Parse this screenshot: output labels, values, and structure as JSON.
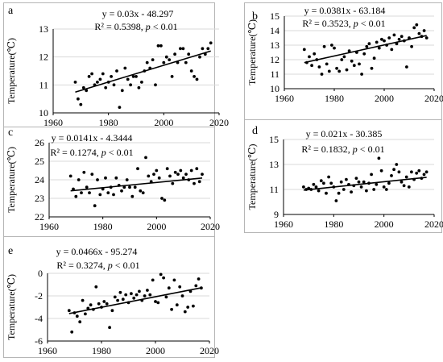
{
  "chart_data": [
    {
      "type": "scatter",
      "panel_letter": "a",
      "ylabel": "Temperature(℃)",
      "equation": "y = 0.03x - 48.297",
      "r2_prefix": "R² = 0.5398, ",
      "p_symbol": "p",
      "p_suffix": " < 0.01",
      "xlim": [
        1960,
        2020
      ],
      "ylim": [
        10,
        13
      ],
      "xticks": [
        1960,
        1980,
        2000,
        2020
      ],
      "yticks": [
        10,
        11,
        12,
        13
      ],
      "trend": {
        "slope": 0.03,
        "intercept": -48.297,
        "x_range": [
          1968,
          2017
        ]
      },
      "points": [
        [
          1968,
          11.1
        ],
        [
          1969,
          10.5
        ],
        [
          1970,
          10.3
        ],
        [
          1971,
          10.9
        ],
        [
          1972,
          10.8
        ],
        [
          1973,
          11.3
        ],
        [
          1974,
          11.4
        ],
        [
          1975,
          11.0
        ],
        [
          1976,
          11.1
        ],
        [
          1977,
          11.2
        ],
        [
          1978,
          11.4
        ],
        [
          1979,
          10.9
        ],
        [
          1980,
          11.1
        ],
        [
          1981,
          11.3
        ],
        [
          1982,
          11.0
        ],
        [
          1983,
          11.5
        ],
        [
          1984,
          10.2
        ],
        [
          1985,
          10.8
        ],
        [
          1986,
          11.6
        ],
        [
          1987,
          11.2
        ],
        [
          1988,
          11.0
        ],
        [
          1989,
          11.3
        ],
        [
          1990,
          11.3
        ],
        [
          1991,
          10.9
        ],
        [
          1992,
          11.1
        ],
        [
          1993,
          11.5
        ],
        [
          1994,
          11.8
        ],
        [
          1995,
          11.6
        ],
        [
          1996,
          11.9
        ],
        [
          1997,
          11.0
        ],
        [
          1998,
          12.4
        ],
        [
          1999,
          12.4
        ],
        [
          2000,
          11.8
        ],
        [
          2001,
          12.0
        ],
        [
          2002,
          11.9
        ],
        [
          2003,
          11.3
        ],
        [
          2004,
          12.1
        ],
        [
          2005,
          11.8
        ],
        [
          2006,
          12.3
        ],
        [
          2007,
          12.3
        ],
        [
          2008,
          11.8
        ],
        [
          2009,
          12.1
        ],
        [
          2010,
          11.5
        ],
        [
          2011,
          11.3
        ],
        [
          2012,
          11.2
        ],
        [
          2013,
          12.0
        ],
        [
          2014,
          12.3
        ],
        [
          2015,
          12.1
        ],
        [
          2016,
          12.3
        ],
        [
          2017,
          12.5
        ]
      ]
    },
    {
      "type": "scatter",
      "panel_letter": "b",
      "ylabel": "Temperature(℃)",
      "equation": "y = 0.0381x - 63.184",
      "r2_prefix": "R² = 0.3523, ",
      "p_symbol": "p",
      "p_suffix": " < 0.01",
      "xlim": [
        1960,
        2020
      ],
      "ylim": [
        10,
        15
      ],
      "xticks": [
        1960,
        1980,
        2000,
        2020
      ],
      "yticks": [
        10,
        11,
        12,
        13,
        14,
        15
      ],
      "trend": {
        "slope": 0.0381,
        "intercept": -63.184,
        "x_range": [
          1968,
          2017
        ]
      },
      "points": [
        [
          1968,
          12.7
        ],
        [
          1969,
          11.8
        ],
        [
          1970,
          12.2
        ],
        [
          1971,
          11.6
        ],
        [
          1972,
          12.4
        ],
        [
          1973,
          12.0
        ],
        [
          1974,
          11.5
        ],
        [
          1975,
          11.0
        ],
        [
          1976,
          12.9
        ],
        [
          1977,
          11.7
        ],
        [
          1978,
          11.2
        ],
        [
          1979,
          13.0
        ],
        [
          1980,
          12.8
        ],
        [
          1981,
          11.4
        ],
        [
          1982,
          11.2
        ],
        [
          1983,
          12.0
        ],
        [
          1984,
          12.2
        ],
        [
          1985,
          11.3
        ],
        [
          1986,
          12.6
        ],
        [
          1987,
          11.9
        ],
        [
          1988,
          11.6
        ],
        [
          1989,
          12.5
        ],
        [
          1990,
          11.7
        ],
        [
          1991,
          11.0
        ],
        [
          1992,
          12.4
        ],
        [
          1993,
          12.9
        ],
        [
          1994,
          13.1
        ],
        [
          1995,
          11.4
        ],
        [
          1996,
          12.1
        ],
        [
          1997,
          13.2
        ],
        [
          1998,
          12.8
        ],
        [
          1999,
          13.4
        ],
        [
          2000,
          13.3
        ],
        [
          2001,
          13.0
        ],
        [
          2002,
          13.5
        ],
        [
          2003,
          12.7
        ],
        [
          2004,
          13.7
        ],
        [
          2005,
          13.1
        ],
        [
          2006,
          13.4
        ],
        [
          2007,
          13.6
        ],
        [
          2008,
          13.3
        ],
        [
          2009,
          11.5
        ],
        [
          2010,
          13.5
        ],
        [
          2011,
          12.9
        ],
        [
          2012,
          14.2
        ],
        [
          2013,
          14.4
        ],
        [
          2014,
          13.8
        ],
        [
          2015,
          13.6
        ],
        [
          2016,
          14.0
        ],
        [
          2017,
          13.5
        ]
      ]
    },
    {
      "type": "scatter",
      "panel_letter": "c",
      "ylabel": "Temperature(℃)",
      "equation": "y = 0.0141x - 4.3444",
      "r2_prefix": "R² = 0.1274, ",
      "p_symbol": "p",
      "p_suffix": " < 0.01",
      "xlim": [
        1960,
        2020
      ],
      "ylim": [
        22,
        26
      ],
      "xticks": [
        1960,
        1980,
        2000,
        2020
      ],
      "yticks": [
        22,
        23,
        24,
        25,
        26
      ],
      "trend": {
        "slope": 0.0141,
        "intercept": -4.3444,
        "x_range": [
          1968,
          2017
        ]
      },
      "points": [
        [
          1968,
          24.2
        ],
        [
          1969,
          23.5
        ],
        [
          1970,
          23.1
        ],
        [
          1971,
          24.0
        ],
        [
          1972,
          23.3
        ],
        [
          1973,
          24.4
        ],
        [
          1974,
          23.6
        ],
        [
          1975,
          23.3
        ],
        [
          1976,
          24.3
        ],
        [
          1977,
          22.6
        ],
        [
          1978,
          24.0
        ],
        [
          1979,
          23.2
        ],
        [
          1980,
          23.5
        ],
        [
          1981,
          24.1
        ],
        [
          1982,
          23.3
        ],
        [
          1983,
          23.6
        ],
        [
          1984,
          23.2
        ],
        [
          1985,
          24.1
        ],
        [
          1986,
          23.7
        ],
        [
          1987,
          23.4
        ],
        [
          1988,
          23.6
        ],
        [
          1989,
          24.0
        ],
        [
          1990,
          23.6
        ],
        [
          1991,
          23.1
        ],
        [
          1992,
          23.6
        ],
        [
          1993,
          24.6
        ],
        [
          1994,
          23.4
        ],
        [
          1995,
          23.3
        ],
        [
          1996,
          25.2
        ],
        [
          1997,
          24.2
        ],
        [
          1998,
          23.9
        ],
        [
          1999,
          24.3
        ],
        [
          2000,
          24.5
        ],
        [
          2001,
          24.1
        ],
        [
          2002,
          23.0
        ],
        [
          2003,
          22.9
        ],
        [
          2004,
          24.6
        ],
        [
          2005,
          24.2
        ],
        [
          2006,
          23.8
        ],
        [
          2007,
          24.4
        ],
        [
          2008,
          24.3
        ],
        [
          2009,
          24.5
        ],
        [
          2010,
          24.1
        ],
        [
          2011,
          24.3
        ],
        [
          2012,
          24.0
        ],
        [
          2013,
          24.5
        ],
        [
          2014,
          23.8
        ],
        [
          2015,
          24.6
        ],
        [
          2016,
          23.9
        ],
        [
          2017,
          24.3
        ]
      ]
    },
    {
      "type": "scatter",
      "panel_letter": "d",
      "ylabel": "Temperature(℃)",
      "equation": "y = 0.021x - 30.385",
      "r2_prefix": "R² = 0.1832, ",
      "p_symbol": "p",
      "p_suffix": " < 0.01",
      "xlim": [
        1960,
        2020
      ],
      "ylim": [
        9,
        15
      ],
      "xticks": [
        1960,
        1980,
        2000,
        2020
      ],
      "yticks": [
        9,
        11,
        13,
        15
      ],
      "trend": {
        "slope": 0.021,
        "intercept": -30.385,
        "x_range": [
          1968,
          2017
        ]
      },
      "points": [
        [
          1968,
          11.2
        ],
        [
          1969,
          11.0
        ],
        [
          1970,
          11.1
        ],
        [
          1971,
          11.0
        ],
        [
          1972,
          11.4
        ],
        [
          1973,
          11.2
        ],
        [
          1974,
          10.9
        ],
        [
          1975,
          11.7
        ],
        [
          1976,
          11.5
        ],
        [
          1977,
          10.7
        ],
        [
          1978,
          12.0
        ],
        [
          1979,
          11.5
        ],
        [
          1980,
          11.2
        ],
        [
          1981,
          10.1
        ],
        [
          1982,
          10.7
        ],
        [
          1983,
          11.6
        ],
        [
          1984,
          11.0
        ],
        [
          1985,
          11.8
        ],
        [
          1986,
          11.4
        ],
        [
          1987,
          10.8
        ],
        [
          1988,
          11.3
        ],
        [
          1989,
          11.9
        ],
        [
          1990,
          11.6
        ],
        [
          1991,
          11.2
        ],
        [
          1992,
          11.6
        ],
        [
          1993,
          10.9
        ],
        [
          1994,
          11.5
        ],
        [
          1995,
          12.2
        ],
        [
          1996,
          11.0
        ],
        [
          1997,
          11.4
        ],
        [
          1998,
          13.5
        ],
        [
          1999,
          12.5
        ],
        [
          2000,
          11.2
        ],
        [
          2001,
          11.0
        ],
        [
          2002,
          11.5
        ],
        [
          2003,
          12.1
        ],
        [
          2004,
          12.6
        ],
        [
          2005,
          13.0
        ],
        [
          2006,
          12.4
        ],
        [
          2007,
          11.6
        ],
        [
          2008,
          11.3
        ],
        [
          2009,
          12.0
        ],
        [
          2010,
          11.2
        ],
        [
          2011,
          12.4
        ],
        [
          2012,
          11.8
        ],
        [
          2013,
          12.3
        ],
        [
          2014,
          12.5
        ],
        [
          2015,
          11.9
        ],
        [
          2016,
          12.2
        ],
        [
          2017,
          12.4
        ]
      ]
    },
    {
      "type": "scatter",
      "panel_letter": "e",
      "ylabel": "Temperature(℃)",
      "equation": "y = 0.0466x - 95.274",
      "r2_prefix": "R² = 0.3274, ",
      "p_symbol": "p",
      "p_suffix": " < 0.01",
      "xlim": [
        1960,
        2020
      ],
      "ylim": [
        -6,
        0
      ],
      "xticks": [
        1960,
        1980,
        2000,
        2020
      ],
      "yticks": [
        -6,
        -4,
        -2,
        0
      ],
      "trend": {
        "slope": 0.0466,
        "intercept": -95.274,
        "x_range": [
          1968,
          2017
        ]
      },
      "points": [
        [
          1968,
          -3.3
        ],
        [
          1969,
          -5.2
        ],
        [
          1970,
          -3.5
        ],
        [
          1971,
          -3.8
        ],
        [
          1972,
          -4.3
        ],
        [
          1973,
          -2.4
        ],
        [
          1974,
          -3.6
        ],
        [
          1975,
          -3.1
        ],
        [
          1976,
          -2.8
        ],
        [
          1977,
          -3.2
        ],
        [
          1978,
          -1.2
        ],
        [
          1979,
          -2.7
        ],
        [
          1980,
          -3.0
        ],
        [
          1981,
          -2.5
        ],
        [
          1982,
          -2.7
        ],
        [
          1983,
          -4.8
        ],
        [
          1984,
          -3.3
        ],
        [
          1985,
          -2.1
        ],
        [
          1986,
          -2.4
        ],
        [
          1987,
          -1.7
        ],
        [
          1988,
          -2.3
        ],
        [
          1989,
          -1.9
        ],
        [
          1990,
          -2.6
        ],
        [
          1991,
          -1.8
        ],
        [
          1992,
          -2.2
        ],
        [
          1993,
          -1.9
        ],
        [
          1994,
          -1.6
        ],
        [
          1995,
          -2.4
        ],
        [
          1996,
          -2.0
        ],
        [
          1997,
          -1.5
        ],
        [
          1998,
          -1.9
        ],
        [
          1999,
          -0.6
        ],
        [
          2000,
          -2.5
        ],
        [
          2001,
          -2.6
        ],
        [
          2002,
          -0.1
        ],
        [
          2003,
          -0.4
        ],
        [
          2004,
          -2.1
        ],
        [
          2005,
          -1.3
        ],
        [
          2006,
          -3.2
        ],
        [
          2007,
          -0.6
        ],
        [
          2008,
          -2.8
        ],
        [
          2009,
          -1.2
        ],
        [
          2010,
          -2.0
        ],
        [
          2011,
          -3.4
        ],
        [
          2012,
          -3.0
        ],
        [
          2013,
          -1.6
        ],
        [
          2014,
          -2.9
        ],
        [
          2015,
          -1.1
        ],
        [
          2016,
          -0.5
        ],
        [
          2017,
          -1.3
        ]
      ]
    }
  ]
}
